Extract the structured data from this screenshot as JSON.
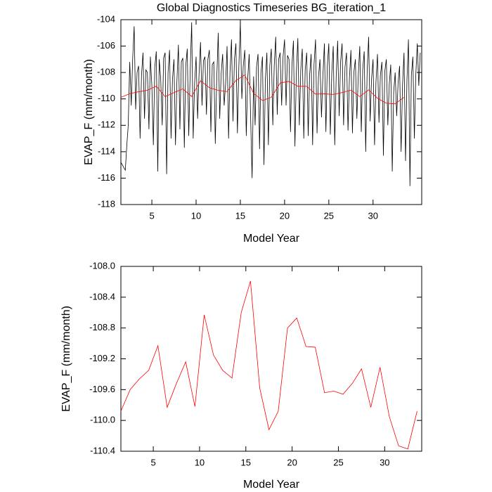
{
  "chart_data": [
    {
      "type": "line",
      "title": "Global Diagnostics Timeseries BG_iteration_1",
      "y_label": "EVAP_F (mm/month)",
      "x_label": "Model Year",
      "xlim": [
        1.5,
        35.5
      ],
      "xticks": [
        5,
        10,
        15,
        20,
        25,
        30
      ],
      "ylim": [
        -118,
        -104
      ],
      "yticks": [
        -118,
        -116,
        -114,
        -112,
        -110,
        -108,
        -106,
        -104
      ],
      "series": [
        {
          "color": "#000000",
          "x": [
            1.5,
            1.67,
            1.83,
            2,
            2.17,
            2.33,
            2.5,
            2.67,
            2.83,
            3,
            3.17,
            3.33,
            3.5,
            3.67,
            3.83,
            4,
            4.17,
            4.33,
            4.5,
            4.67,
            4.83,
            5,
            5.17,
            5.33,
            5.5,
            5.67,
            5.83,
            6,
            6.17,
            6.33,
            6.5,
            6.67,
            6.83,
            7,
            7.17,
            7.33,
            7.5,
            7.67,
            7.83,
            8,
            8.17,
            8.33,
            8.5,
            8.67,
            8.83,
            9,
            9.17,
            9.33,
            9.5,
            9.67,
            9.83,
            10,
            10.17,
            10.33,
            10.5,
            10.67,
            10.83,
            11,
            11.17,
            11.33,
            11.5,
            11.67,
            11.83,
            12,
            12.17,
            12.33,
            12.5,
            12.67,
            12.83,
            13,
            13.17,
            13.33,
            13.5,
            13.67,
            13.83,
            14,
            14.17,
            14.33,
            14.5,
            14.67,
            14.83,
            15,
            15.17,
            15.33,
            15.5,
            15.67,
            15.83,
            16,
            16.17,
            16.33,
            16.5,
            16.67,
            16.83,
            17,
            17.17,
            17.33,
            17.5,
            17.67,
            17.83,
            18,
            18.17,
            18.33,
            18.5,
            18.67,
            18.83,
            19,
            19.17,
            19.33,
            19.5,
            19.67,
            19.83,
            20,
            20.17,
            20.33,
            20.5,
            20.67,
            20.83,
            21,
            21.17,
            21.33,
            21.5,
            21.67,
            21.83,
            22,
            22.17,
            22.33,
            22.5,
            22.67,
            22.83,
            23,
            23.17,
            23.33,
            23.5,
            23.67,
            23.83,
            24,
            24.17,
            24.33,
            24.5,
            24.67,
            24.83,
            25,
            25.17,
            25.33,
            25.5,
            25.67,
            25.83,
            26,
            26.17,
            26.33,
            26.5,
            26.67,
            26.83,
            27,
            27.17,
            27.33,
            27.5,
            27.67,
            27.83,
            28,
            28.17,
            28.33,
            28.5,
            28.67,
            28.83,
            29,
            29.17,
            29.33,
            29.5,
            29.67,
            29.83,
            30,
            30.17,
            30.33,
            30.5,
            30.67,
            30.83,
            31,
            31.17,
            31.33,
            31.5,
            31.67,
            31.83,
            32,
            32.17,
            32.33,
            32.5,
            32.67,
            32.83,
            33,
            33.17,
            33.33,
            33.5,
            33.67,
            33.83,
            34,
            34.17,
            34.33,
            34.5,
            34.67,
            34.83,
            35,
            35.17,
            35.33
          ],
          "values": [
            -114.8,
            -115.0,
            -115.2,
            -115.4,
            -113.5,
            -112.0,
            -107.2,
            -110.5,
            -107.0,
            -104.5,
            -110.8,
            -108.0,
            -107.5,
            -113.0,
            -108.2,
            -106.5,
            -111.5,
            -107.8,
            -108.0,
            -112.3,
            -106.8,
            -109.0,
            -113.5,
            -107.6,
            -106.4,
            -115.5,
            -107.0,
            -108.5,
            -112.0,
            -106.9,
            -106.5,
            -115.7,
            -108.0,
            -106.3,
            -113.0,
            -108.5,
            -107.0,
            -113.5,
            -108.7,
            -105.9,
            -112.3,
            -107.2,
            -106.9,
            -113.7,
            -107.5,
            -106.2,
            -112.8,
            -108.0,
            -104.2,
            -113.0,
            -108.8,
            -106.8,
            -111.5,
            -108.2,
            -105.7,
            -110.5,
            -107.1,
            -106.8,
            -111.2,
            -107.0,
            -106.3,
            -112.5,
            -107.4,
            -107.2,
            -113.4,
            -108.6,
            -105.0,
            -111.5,
            -108.1,
            -106.6,
            -110.5,
            -108.9,
            -106.0,
            -113.0,
            -108.0,
            -105.5,
            -111.7,
            -107.0,
            -105.8,
            -112.6,
            -107.6,
            -104.2,
            -110.0,
            -107.5,
            -106.3,
            -112.8,
            -108.5,
            -106.6,
            -111.6,
            -116.0,
            -108.3,
            -112.0,
            -107.6,
            -106.6,
            -113.8,
            -108.0,
            -106.8,
            -115.0,
            -108.5,
            -106.5,
            -113.5,
            -107.5,
            -106.2,
            -112.0,
            -107.5,
            -105.3,
            -111.2,
            -107.0,
            -106.5,
            -110.5,
            -106.8,
            -105.5,
            -110.5,
            -106.7,
            -107.0,
            -112.5,
            -107.5,
            -105.6,
            -113.6,
            -108.0,
            -105.4,
            -112.0,
            -107.8,
            -106.2,
            -113.0,
            -107.8,
            -106.5,
            -112.8,
            -108.2,
            -106.6,
            -113.5,
            -107.4,
            -105.5,
            -112.6,
            -108.3,
            -107.0,
            -111.4,
            -108.3,
            -105.8,
            -112.5,
            -107.5,
            -105.8,
            -112.7,
            -108.1,
            -106.0,
            -113.5,
            -108.4,
            -105.6,
            -111.3,
            -107.2,
            -105.8,
            -112.0,
            -107.6,
            -106.5,
            -112.4,
            -108.4,
            -106.3,
            -112.6,
            -108.0,
            -107.0,
            -111.5,
            -108.2,
            -106.0,
            -112.5,
            -107.8,
            -106.4,
            -114.0,
            -108.0,
            -105.3,
            -111.7,
            -108.5,
            -107.0,
            -113.5,
            -108.7,
            -106.6,
            -111.8,
            -108.2,
            -107.2,
            -114.3,
            -107.9,
            -107.0,
            -112.0,
            -108.9,
            -107.4,
            -115.5,
            -109.5,
            -108.0,
            -111.3,
            -108.8,
            -107.5,
            -114.0,
            -109.0,
            -106.5,
            -114.7,
            -108.6,
            -105.5,
            -116.6,
            -108.2,
            -106.8,
            -113.0,
            -108.2,
            -105.8,
            -109.0,
            -106.5
          ]
        },
        {
          "color": "#ff0000",
          "x": [
            1.5,
            2.5,
            3.5,
            4.5,
            5.5,
            6.5,
            7.5,
            8.5,
            9.5,
            10.5,
            11.5,
            12.5,
            13.5,
            14.5,
            15.5,
            16.5,
            17.5,
            18.5,
            19.5,
            20.5,
            21.5,
            22.5,
            23.5,
            24.5,
            25.5,
            26.5,
            27.5,
            28.5,
            29.5,
            30.5,
            31.5,
            32.5,
            33.5
          ],
          "values": [
            -109.88,
            -109.6,
            -109.46,
            -109.35,
            -109.03,
            -109.83,
            -109.52,
            -109.24,
            -109.82,
            -108.63,
            -109.15,
            -109.35,
            -109.45,
            -108.6,
            -108.19,
            -109.58,
            -110.12,
            -109.88,
            -108.8,
            -108.67,
            -109.04,
            -109.05,
            -109.64,
            -109.62,
            -109.66,
            -109.52,
            -109.33,
            -109.83,
            -109.31,
            -109.95,
            -110.33,
            -110.37,
            -109.88
          ]
        }
      ]
    },
    {
      "type": "line",
      "y_label": "EVAP_F (mm/month)",
      "x_label": "Model Year",
      "xlim": [
        1.5,
        34
      ],
      "xticks": [
        5,
        10,
        15,
        20,
        25,
        30
      ],
      "ylim": [
        -110.4,
        -108.0
      ],
      "yticks": [
        -110.4,
        {
          "value": -110.0,
          "label": "-110.0"
        },
        -109.6,
        -109.2,
        -108.8,
        -108.4,
        {
          "value": -108.0,
          "label": "-108.0"
        }
      ],
      "series": [
        {
          "color": "#ff0000",
          "x": [
            1.5,
            2.5,
            3.5,
            4.5,
            5.5,
            6.5,
            7.5,
            8.5,
            9.5,
            10.5,
            11.5,
            12.5,
            13.5,
            14.5,
            15.5,
            16.5,
            17.5,
            18.5,
            19.5,
            20.5,
            21.5,
            22.5,
            23.5,
            24.5,
            25.5,
            26.5,
            27.5,
            28.5,
            29.5,
            30.5,
            31.5,
            32.5,
            33.5
          ],
          "values": [
            -109.88,
            -109.6,
            -109.46,
            -109.35,
            -109.03,
            -109.83,
            -109.52,
            -109.24,
            -109.82,
            -108.63,
            -109.15,
            -109.35,
            -109.45,
            -108.6,
            -108.19,
            -109.58,
            -110.12,
            -109.88,
            -108.8,
            -108.67,
            -109.04,
            -109.05,
            -109.64,
            -109.62,
            -109.66,
            -109.52,
            -109.33,
            -109.83,
            -109.31,
            -109.95,
            -110.33,
            -110.37,
            -109.88
          ]
        }
      ]
    }
  ]
}
